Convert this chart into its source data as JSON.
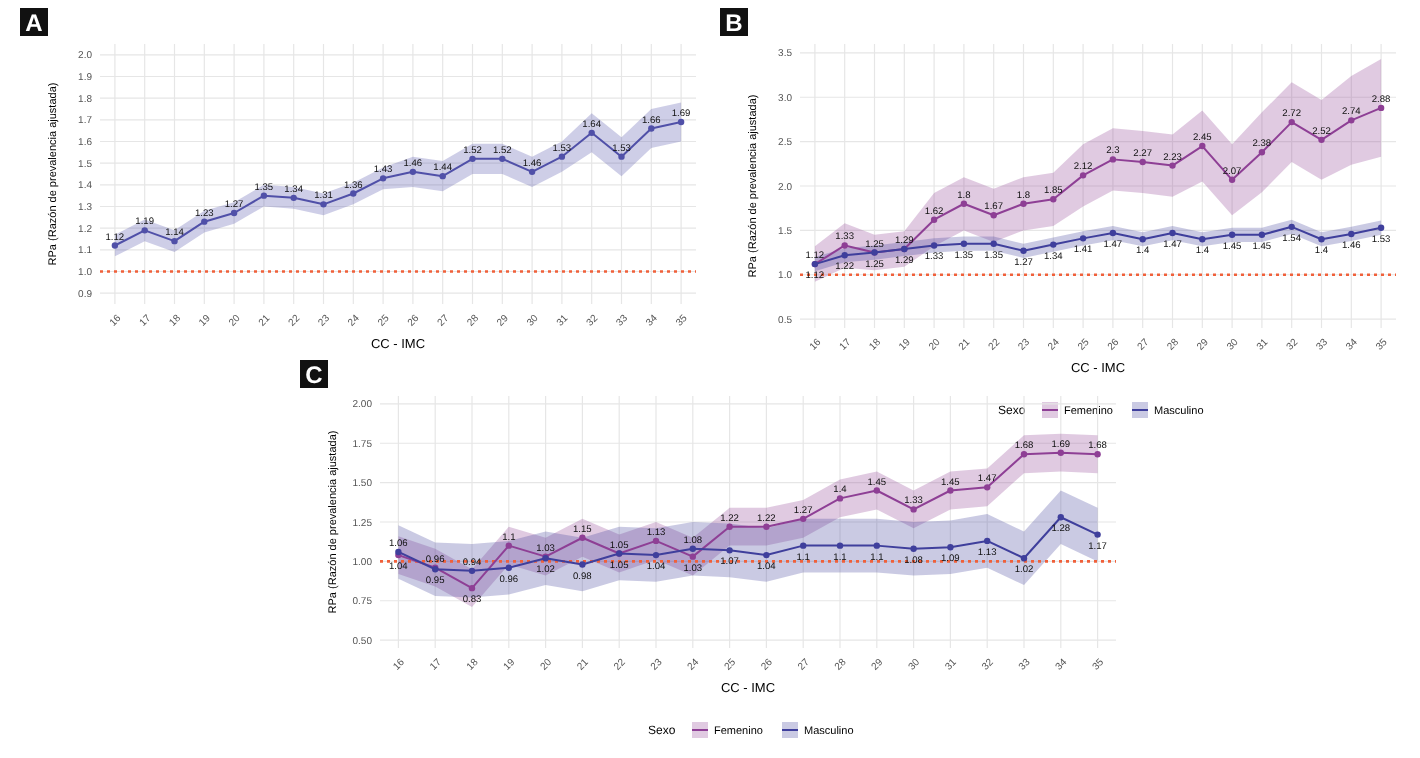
{
  "chart_data": [
    {
      "type": "line",
      "title": "A",
      "xlabel": "CC - IMC",
      "ylabel": "RPa (Razón de prevalencia ajustada)",
      "categories": [
        "16",
        "17",
        "18",
        "19",
        "20",
        "21",
        "22",
        "23",
        "24",
        "25",
        "26",
        "27",
        "28",
        "29",
        "30",
        "31",
        "32",
        "33",
        "34",
        "35"
      ],
      "series": [
        {
          "color": "#5050a8",
          "values": [
            1.12,
            1.19,
            1.14,
            1.23,
            1.27,
            1.35,
            1.34,
            1.31,
            1.36,
            1.43,
            1.46,
            1.44,
            1.52,
            1.52,
            1.46,
            1.53,
            1.64,
            1.53,
            1.66,
            1.69
          ],
          "lower": [
            1.07,
            1.14,
            1.09,
            1.18,
            1.22,
            1.3,
            1.29,
            1.26,
            1.31,
            1.38,
            1.39,
            1.37,
            1.45,
            1.45,
            1.39,
            1.46,
            1.55,
            1.44,
            1.57,
            1.6
          ],
          "upper": [
            1.17,
            1.24,
            1.19,
            1.28,
            1.32,
            1.4,
            1.39,
            1.36,
            1.41,
            1.48,
            1.53,
            1.51,
            1.59,
            1.59,
            1.53,
            1.6,
            1.73,
            1.62,
            1.75,
            1.78
          ]
        }
      ],
      "ylim": [
        0.85,
        2.05
      ],
      "yticks": [
        {
          "value": 0.9,
          "label": "0.9"
        },
        {
          "value": 1.0,
          "label": "1.0"
        },
        {
          "value": 1.1,
          "label": "1.1"
        },
        {
          "value": 1.2,
          "label": "1.2"
        },
        {
          "value": 1.3,
          "label": "1.3"
        },
        {
          "value": 1.4,
          "label": "1.4"
        },
        {
          "value": 1.5,
          "label": "1.5"
        },
        {
          "value": 1.6,
          "label": "1.6"
        },
        {
          "value": 1.7,
          "label": "1.7"
        },
        {
          "value": 1.8,
          "label": "1.8"
        },
        {
          "value": 1.9,
          "label": "1.9"
        },
        {
          "value": 2.0,
          "label": "2.0"
        }
      ],
      "grid": true,
      "marker": "circle",
      "data_labels": true,
      "legend": false,
      "ref_lines": [
        {
          "axis": "y",
          "value": 1,
          "color": "#f0603a",
          "line_style": "dotted"
        }
      ]
    },
    {
      "type": "line",
      "title": "B",
      "xlabel": "CC - IMC",
      "ylabel": "RPa (Razón de prevalencia ajustada)",
      "legend_title": "Sexo",
      "categories": [
        "16",
        "17",
        "18",
        "19",
        "20",
        "21",
        "22",
        "23",
        "24",
        "25",
        "26",
        "27",
        "28",
        "29",
        "30",
        "31",
        "32",
        "33",
        "34",
        "35"
      ],
      "series": [
        {
          "name": "Femenino",
          "color": "#8e3f95",
          "values": [
            1.12,
            1.33,
            1.25,
            1.29,
            1.62,
            1.8,
            1.67,
            1.8,
            1.85,
            2.12,
            2.3,
            2.27,
            2.23,
            2.45,
            2.07,
            2.38,
            2.72,
            2.52,
            2.74,
            2.88
          ],
          "lower": [
            0.92,
            1.08,
            1.05,
            1.09,
            1.32,
            1.5,
            1.37,
            1.5,
            1.55,
            1.77,
            1.95,
            1.92,
            1.88,
            2.05,
            1.67,
            1.93,
            2.27,
            2.07,
            2.24,
            2.33
          ],
          "upper": [
            1.32,
            1.58,
            1.45,
            1.49,
            1.92,
            2.1,
            1.97,
            2.1,
            2.15,
            2.47,
            2.65,
            2.62,
            2.58,
            2.85,
            2.47,
            2.83,
            3.17,
            2.97,
            3.24,
            3.43
          ]
        },
        {
          "name": "Masculino",
          "color": "#3f3f9c",
          "values": [
            1.12,
            1.22,
            1.25,
            1.29,
            1.33,
            1.35,
            1.35,
            1.27,
            1.34,
            1.41,
            1.47,
            1.4,
            1.47,
            1.4,
            1.45,
            1.45,
            1.54,
            1.4,
            1.46,
            1.53
          ],
          "lower": [
            1.04,
            1.14,
            1.17,
            1.21,
            1.25,
            1.27,
            1.27,
            1.19,
            1.26,
            1.33,
            1.39,
            1.32,
            1.39,
            1.32,
            1.37,
            1.37,
            1.46,
            1.32,
            1.38,
            1.45
          ],
          "upper": [
            1.2,
            1.3,
            1.33,
            1.37,
            1.41,
            1.43,
            1.43,
            1.35,
            1.42,
            1.49,
            1.55,
            1.48,
            1.55,
            1.48,
            1.53,
            1.53,
            1.62,
            1.48,
            1.54,
            1.61
          ]
        }
      ],
      "ylim": [
        0.4,
        3.6
      ],
      "yticks": [
        {
          "value": 0.5,
          "label": "0.5"
        },
        {
          "value": 1.0,
          "label": "1.0"
        },
        {
          "value": 1.5,
          "label": "1.5"
        },
        {
          "value": 2.0,
          "label": "2.0"
        },
        {
          "value": 2.5,
          "label": "2.5"
        },
        {
          "value": 3.0,
          "label": "3.0"
        },
        {
          "value": 3.5,
          "label": "3.5"
        }
      ],
      "grid": true,
      "marker": "circle",
      "data_labels": true,
      "legend": "bottom",
      "ref_lines": [
        {
          "axis": "y",
          "value": 1,
          "color": "#f0603a",
          "line_style": "dotted"
        }
      ]
    },
    {
      "type": "line",
      "title": "C",
      "xlabel": "CC - IMC",
      "ylabel": "RPa (Razón de prevalencia ajustada)",
      "legend_title": "Sexo",
      "categories": [
        "16",
        "17",
        "18",
        "19",
        "20",
        "21",
        "22",
        "23",
        "24",
        "25",
        "26",
        "27",
        "28",
        "29",
        "30",
        "31",
        "32",
        "33",
        "34",
        "35"
      ],
      "series": [
        {
          "name": "Femenino",
          "color": "#8e3f95",
          "values": [
            1.04,
            0.96,
            0.83,
            1.1,
            1.03,
            1.15,
            1.05,
            1.13,
            1.03,
            1.22,
            1.22,
            1.27,
            1.4,
            1.45,
            1.33,
            1.45,
            1.47,
            1.68,
            1.69,
            1.68
          ],
          "lower": [
            0.92,
            0.84,
            0.71,
            0.98,
            0.91,
            1.03,
            0.93,
            1.01,
            0.91,
            1.1,
            1.1,
            1.15,
            1.28,
            1.33,
            1.21,
            1.33,
            1.35,
            1.56,
            1.57,
            1.56
          ],
          "upper": [
            1.16,
            1.08,
            0.95,
            1.22,
            1.15,
            1.27,
            1.17,
            1.25,
            1.15,
            1.34,
            1.34,
            1.39,
            1.52,
            1.57,
            1.45,
            1.57,
            1.59,
            1.8,
            1.81,
            1.8
          ]
        },
        {
          "name": "Masculino",
          "color": "#3f3f9c",
          "values": [
            1.06,
            0.95,
            0.94,
            0.96,
            1.02,
            0.98,
            1.05,
            1.04,
            1.08,
            1.07,
            1.04,
            1.1,
            1.1,
            1.1,
            1.08,
            1.09,
            1.13,
            1.02,
            1.28,
            1.17
          ],
          "lower": [
            0.89,
            0.78,
            0.77,
            0.79,
            0.85,
            0.81,
            0.88,
            0.87,
            0.91,
            0.9,
            0.87,
            0.93,
            0.93,
            0.93,
            0.91,
            0.92,
            0.96,
            0.85,
            1.11,
            1.0
          ],
          "upper": [
            1.23,
            1.12,
            1.11,
            1.13,
            1.19,
            1.15,
            1.22,
            1.21,
            1.25,
            1.24,
            1.21,
            1.27,
            1.27,
            1.27,
            1.25,
            1.26,
            1.3,
            1.19,
            1.45,
            1.34
          ]
        }
      ],
      "ylim": [
        0.45,
        2.05
      ],
      "yticks": [
        {
          "value": 0.5,
          "label": "0.50"
        },
        {
          "value": 0.75,
          "label": "0.75"
        },
        {
          "value": 1.0,
          "label": "1.00"
        },
        {
          "value": 1.25,
          "label": "1.25"
        },
        {
          "value": 1.5,
          "label": "1.50"
        },
        {
          "value": 1.75,
          "label": "1.75"
        },
        {
          "value": 2.0,
          "label": "2.00"
        }
      ],
      "grid": true,
      "marker": "circle",
      "data_labels": true,
      "legend": "bottom",
      "ref_lines": [
        {
          "axis": "y",
          "value": 1,
          "color": "#f0603a",
          "line_style": "dotted"
        }
      ]
    }
  ]
}
